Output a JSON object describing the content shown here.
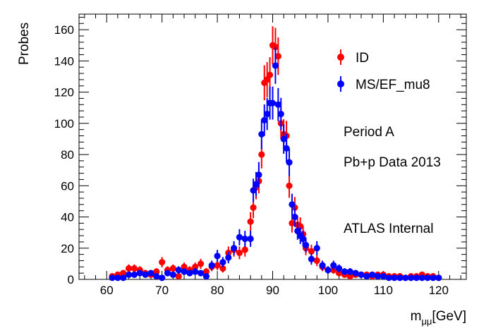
{
  "chart_data": {
    "type": "scatter",
    "title": "",
    "xlabel": "m",
    "xlabel_sub": "μμ",
    "xlabel_unit": "[GeV]",
    "ylabel": "Probes",
    "xlim": [
      55,
      125
    ],
    "ylim": [
      0,
      170
    ],
    "xticks": [
      60,
      70,
      80,
      90,
      100,
      110,
      120
    ],
    "yticks": [
      0,
      20,
      40,
      60,
      80,
      100,
      120,
      140,
      160
    ],
    "grid": false,
    "legend_position": "top-right",
    "annotations": [
      "Period A",
      "Pb+p Data 2013",
      "ATLAS Internal"
    ],
    "series": [
      {
        "name": "ID",
        "color": "#ff0000",
        "x": [
          61,
          62,
          63,
          64,
          65,
          66,
          67,
          68,
          69,
          70,
          71,
          72,
          73,
          74,
          75,
          76,
          77,
          78,
          79,
          80,
          81,
          82,
          83,
          84,
          85,
          86,
          86.5,
          87,
          87.5,
          88,
          88.5,
          89,
          89.5,
          90,
          90.5,
          91,
          91.5,
          92,
          92.5,
          93,
          93.5,
          94,
          94.5,
          95,
          95.5,
          96,
          97,
          98,
          99,
          100,
          101,
          102,
          103,
          104,
          105,
          106,
          107,
          108,
          109,
          110,
          111,
          112,
          113,
          114,
          115,
          116,
          117,
          118,
          119,
          120
        ],
        "y": [
          2,
          3,
          4,
          7,
          7,
          6,
          4,
          3,
          5,
          11,
          6,
          7,
          2,
          8,
          6,
          8,
          10,
          5,
          8,
          9,
          7,
          17,
          19,
          17,
          19,
          37,
          46,
          59,
          63,
          80,
          126,
          128,
          131,
          150,
          149,
          143,
          100,
          93,
          92,
          60,
          36,
          46,
          35,
          34,
          29,
          20,
          18,
          12,
          8,
          6,
          6,
          4,
          3,
          2,
          3,
          3,
          3,
          2,
          3,
          3,
          2,
          2,
          2,
          1,
          2,
          2,
          3,
          2,
          2,
          1
        ],
        "err": [
          1.4,
          1.7,
          2,
          2.6,
          2.6,
          2.4,
          2,
          1.7,
          2.2,
          3.3,
          2.4,
          2.6,
          1.4,
          2.8,
          2.4,
          2.8,
          3.2,
          2.2,
          2.8,
          3,
          2.6,
          4.1,
          4.4,
          4.1,
          4.4,
          6.1,
          6.8,
          7.7,
          7.9,
          8.9,
          11.2,
          11.3,
          11.4,
          12.2,
          12.2,
          12,
          10,
          9.6,
          9.6,
          7.7,
          6,
          6.8,
          5.9,
          5.8,
          5.4,
          4.5,
          4.2,
          3.5,
          2.8,
          2.4,
          2.4,
          2,
          1.7,
          1.4,
          1.7,
          1.7,
          1.7,
          1.4,
          1.7,
          1.7,
          1.4,
          1.4,
          1.4,
          1,
          1.4,
          1.4,
          1.7,
          1.4,
          1.4,
          1
        ]
      },
      {
        "name": "MS/EF_mu8",
        "color": "#0000ff",
        "x": [
          61,
          62,
          63,
          64,
          65,
          66,
          67,
          68,
          69,
          70,
          71,
          72,
          73,
          74,
          75,
          76,
          77,
          78,
          79,
          80,
          81,
          82,
          83,
          84,
          85,
          86,
          86.5,
          87,
          87.5,
          88,
          88.5,
          89,
          89.5,
          90,
          90.5,
          91,
          91.5,
          92,
          92.5,
          93,
          93.5,
          94,
          94.5,
          95,
          95.5,
          96,
          97,
          98,
          99,
          100,
          101,
          102,
          103,
          104,
          105,
          106,
          107,
          108,
          109,
          110,
          111,
          112,
          113,
          114,
          115,
          116,
          117,
          118,
          119,
          120
        ],
        "y": [
          1,
          1,
          1,
          3,
          3,
          4,
          3,
          4,
          2,
          1,
          4,
          3,
          6,
          5,
          4,
          5,
          4,
          2,
          9,
          15,
          11,
          14,
          20,
          27,
          26,
          26,
          57,
          61,
          67,
          93,
          102,
          106,
          113,
          113,
          137,
          112,
          106,
          90,
          84,
          75,
          48,
          40,
          31,
          28,
          26,
          22,
          13,
          20,
          9,
          6,
          9,
          7,
          5,
          5,
          4,
          3,
          2,
          3,
          2,
          2,
          1,
          1,
          1,
          1,
          1,
          1,
          1,
          1,
          1,
          1
        ],
        "err": [
          1,
          1,
          1,
          1.7,
          1.7,
          2,
          1.7,
          2,
          1.4,
          1,
          2,
          1.7,
          2.4,
          2.2,
          2,
          2.2,
          2,
          1.4,
          3,
          3.9,
          3.3,
          3.7,
          4.5,
          5.2,
          5.1,
          5.1,
          7.5,
          7.8,
          8.2,
          9.6,
          10.1,
          10.3,
          10.6,
          10.6,
          11.7,
          10.6,
          10.3,
          9.5,
          9.2,
          8.7,
          6.9,
          6.3,
          5.6,
          5.3,
          5.1,
          4.7,
          3.6,
          4.5,
          3,
          2.4,
          3,
          2.6,
          2.2,
          2.2,
          2,
          1.7,
          1.4,
          1.7,
          1.4,
          1.4,
          1,
          1,
          1,
          1,
          1,
          1,
          1,
          1,
          1,
          1
        ]
      }
    ]
  }
}
